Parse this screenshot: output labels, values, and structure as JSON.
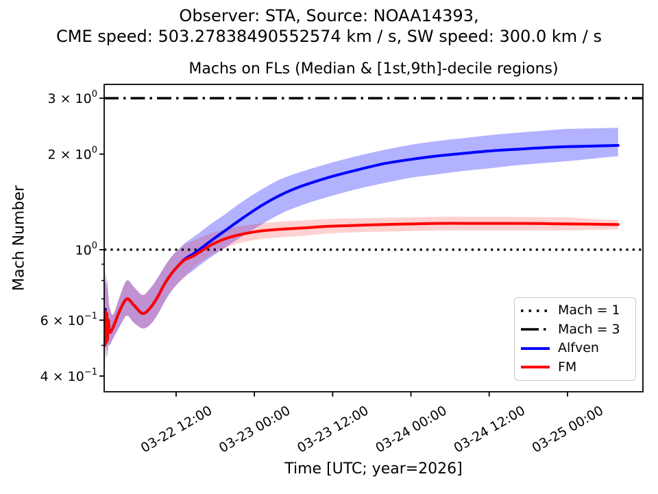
{
  "chart_data": {
    "type": "line",
    "suptitle": [
      "Observer: STA, Source: NOAA14393,",
      "CME speed: 503.27838490552574 km / s, SW speed: 300.0 km / s"
    ],
    "title": "Machs on FLs (Median & [1st,9th]-decile regions)",
    "xlabel": "Time [UTC; year=2026]",
    "ylabel": "Mach Number",
    "y_scale": "log",
    "ylim": [
      0.357,
      3.315
    ],
    "x_unit": "hours since 2026-03-22 00:00 UTC",
    "xlim": [
      0.97,
      83.57
    ],
    "x_ticks": [
      {
        "hours": 12,
        "label": "03-22 12:00"
      },
      {
        "hours": 24,
        "label": "03-23 00:00"
      },
      {
        "hours": 36,
        "label": "03-23 12:00"
      },
      {
        "hours": 48,
        "label": "03-24 00:00"
      },
      {
        "hours": 60,
        "label": "03-24 12:00"
      },
      {
        "hours": 72,
        "label": "03-25 00:00"
      }
    ],
    "y_ticks": [
      {
        "value": 3,
        "base": "3 × 10",
        "exp": "0"
      },
      {
        "value": 2,
        "base": "2 × 10",
        "exp": "0"
      },
      {
        "value": 1,
        "base": "10",
        "exp": "0"
      },
      {
        "value": 0.6,
        "base": "6 × 10",
        "exp": "−1"
      },
      {
        "value": 0.4,
        "base": "4 × 10",
        "exp": "−1"
      }
    ],
    "y_minor_ticks": [
      0.5,
      0.7,
      0.8,
      0.9
    ],
    "hlines": [
      {
        "value": 1,
        "style": "dotted",
        "color": "#000000",
        "label": "Mach = 1"
      },
      {
        "value": 3,
        "style": "dashdot",
        "color": "#000000",
        "label": "Mach = 3"
      }
    ],
    "legend_position": "lower right",
    "band_meaning": "[1st,9th] decile region around median",
    "series": [
      {
        "name": "Alfven",
        "color": "#0000ff",
        "band_color": "rgba(0,0,255,0.30)",
        "t_hours": [
          0.97,
          1.05,
          1.15,
          1.25,
          1.35,
          1.45,
          1.6,
          1.8,
          2.34,
          3.39,
          4.44,
          5.49,
          6.85,
          8.01,
          9.17,
          10.22,
          11.27,
          12.32,
          13.37,
          14.63,
          15.68,
          17.57,
          19.68,
          21.78,
          24.93,
          28.1,
          31.23,
          35.44,
          39.64,
          43.84,
          48.0,
          52.25,
          56.5,
          60.65,
          64.86,
          68.4,
          72.0,
          75.9,
          79.77
        ],
        "median": [
          0.62,
          0.5,
          0.65,
          0.51,
          0.63,
          0.52,
          0.6,
          0.55,
          0.57,
          0.645,
          0.7,
          0.67,
          0.63,
          0.655,
          0.71,
          0.78,
          0.84,
          0.89,
          0.935,
          0.97,
          1.005,
          1.075,
          1.155,
          1.24,
          1.37,
          1.49,
          1.585,
          1.69,
          1.78,
          1.865,
          1.925,
          1.975,
          2.015,
          2.05,
          2.075,
          2.095,
          2.11,
          2.12,
          2.13
        ],
        "decile_low": [
          0.5,
          0.44,
          0.5,
          0.45,
          0.5,
          0.46,
          0.5,
          0.5,
          0.525,
          0.575,
          0.62,
          0.59,
          0.565,
          0.58,
          0.625,
          0.685,
          0.74,
          0.785,
          0.825,
          0.86,
          0.895,
          0.955,
          1.02,
          1.09,
          1.195,
          1.3,
          1.38,
          1.47,
          1.55,
          1.62,
          1.685,
          1.73,
          1.775,
          1.81,
          1.85,
          1.875,
          1.9,
          1.935,
          1.97
        ],
        "decile_high": [
          0.8,
          0.86,
          0.78,
          0.84,
          0.76,
          0.8,
          0.72,
          0.66,
          0.625,
          0.715,
          0.8,
          0.765,
          0.72,
          0.755,
          0.815,
          0.885,
          0.95,
          1.0,
          1.05,
          1.095,
          1.135,
          1.215,
          1.3,
          1.4,
          1.54,
          1.67,
          1.76,
          1.87,
          1.97,
          2.06,
          2.14,
          2.2,
          2.25,
          2.3,
          2.34,
          2.37,
          2.4,
          2.41,
          2.42
        ]
      },
      {
        "name": "FM",
        "color": "#ff0000",
        "band_color": "rgba(255,0,0,0.18)",
        "t_hours": [
          0.97,
          1.05,
          1.15,
          1.25,
          1.35,
          1.45,
          1.6,
          1.8,
          2.34,
          3.39,
          4.44,
          5.49,
          6.85,
          8.01,
          9.17,
          10.22,
          11.27,
          12.32,
          13.37,
          14.63,
          15.68,
          17.57,
          19.68,
          21.78,
          24.93,
          28.1,
          31.23,
          35.44,
          39.64,
          43.84,
          48.0,
          52.25,
          56.5,
          60.65,
          64.86,
          68.4,
          72.0,
          75.9,
          79.77
        ],
        "median": [
          0.62,
          0.5,
          0.64,
          0.51,
          0.63,
          0.52,
          0.6,
          0.55,
          0.57,
          0.645,
          0.7,
          0.67,
          0.63,
          0.655,
          0.71,
          0.78,
          0.84,
          0.89,
          0.93,
          0.955,
          0.985,
          1.04,
          1.085,
          1.115,
          1.145,
          1.16,
          1.17,
          1.185,
          1.193,
          1.2,
          1.205,
          1.21,
          1.21,
          1.21,
          1.21,
          1.208,
          1.205,
          1.203,
          1.2
        ],
        "decile_low": [
          0.5,
          0.44,
          0.5,
          0.45,
          0.5,
          0.46,
          0.5,
          0.5,
          0.525,
          0.575,
          0.62,
          0.59,
          0.565,
          0.58,
          0.625,
          0.685,
          0.74,
          0.785,
          0.82,
          0.875,
          0.91,
          0.965,
          1.015,
          1.05,
          1.08,
          1.095,
          1.105,
          1.125,
          1.135,
          1.14,
          1.145,
          1.15,
          1.15,
          1.15,
          1.15,
          1.15,
          1.15,
          1.155,
          1.16
        ],
        "decile_high": [
          0.8,
          0.86,
          0.78,
          0.84,
          0.76,
          0.8,
          0.72,
          0.66,
          0.625,
          0.715,
          0.8,
          0.765,
          0.72,
          0.755,
          0.815,
          0.885,
          0.95,
          1.0,
          1.04,
          1.065,
          1.09,
          1.13,
          1.16,
          1.185,
          1.21,
          1.225,
          1.235,
          1.25,
          1.255,
          1.26,
          1.265,
          1.27,
          1.27,
          1.27,
          1.268,
          1.266,
          1.264,
          1.25,
          1.24
        ]
      }
    ]
  }
}
